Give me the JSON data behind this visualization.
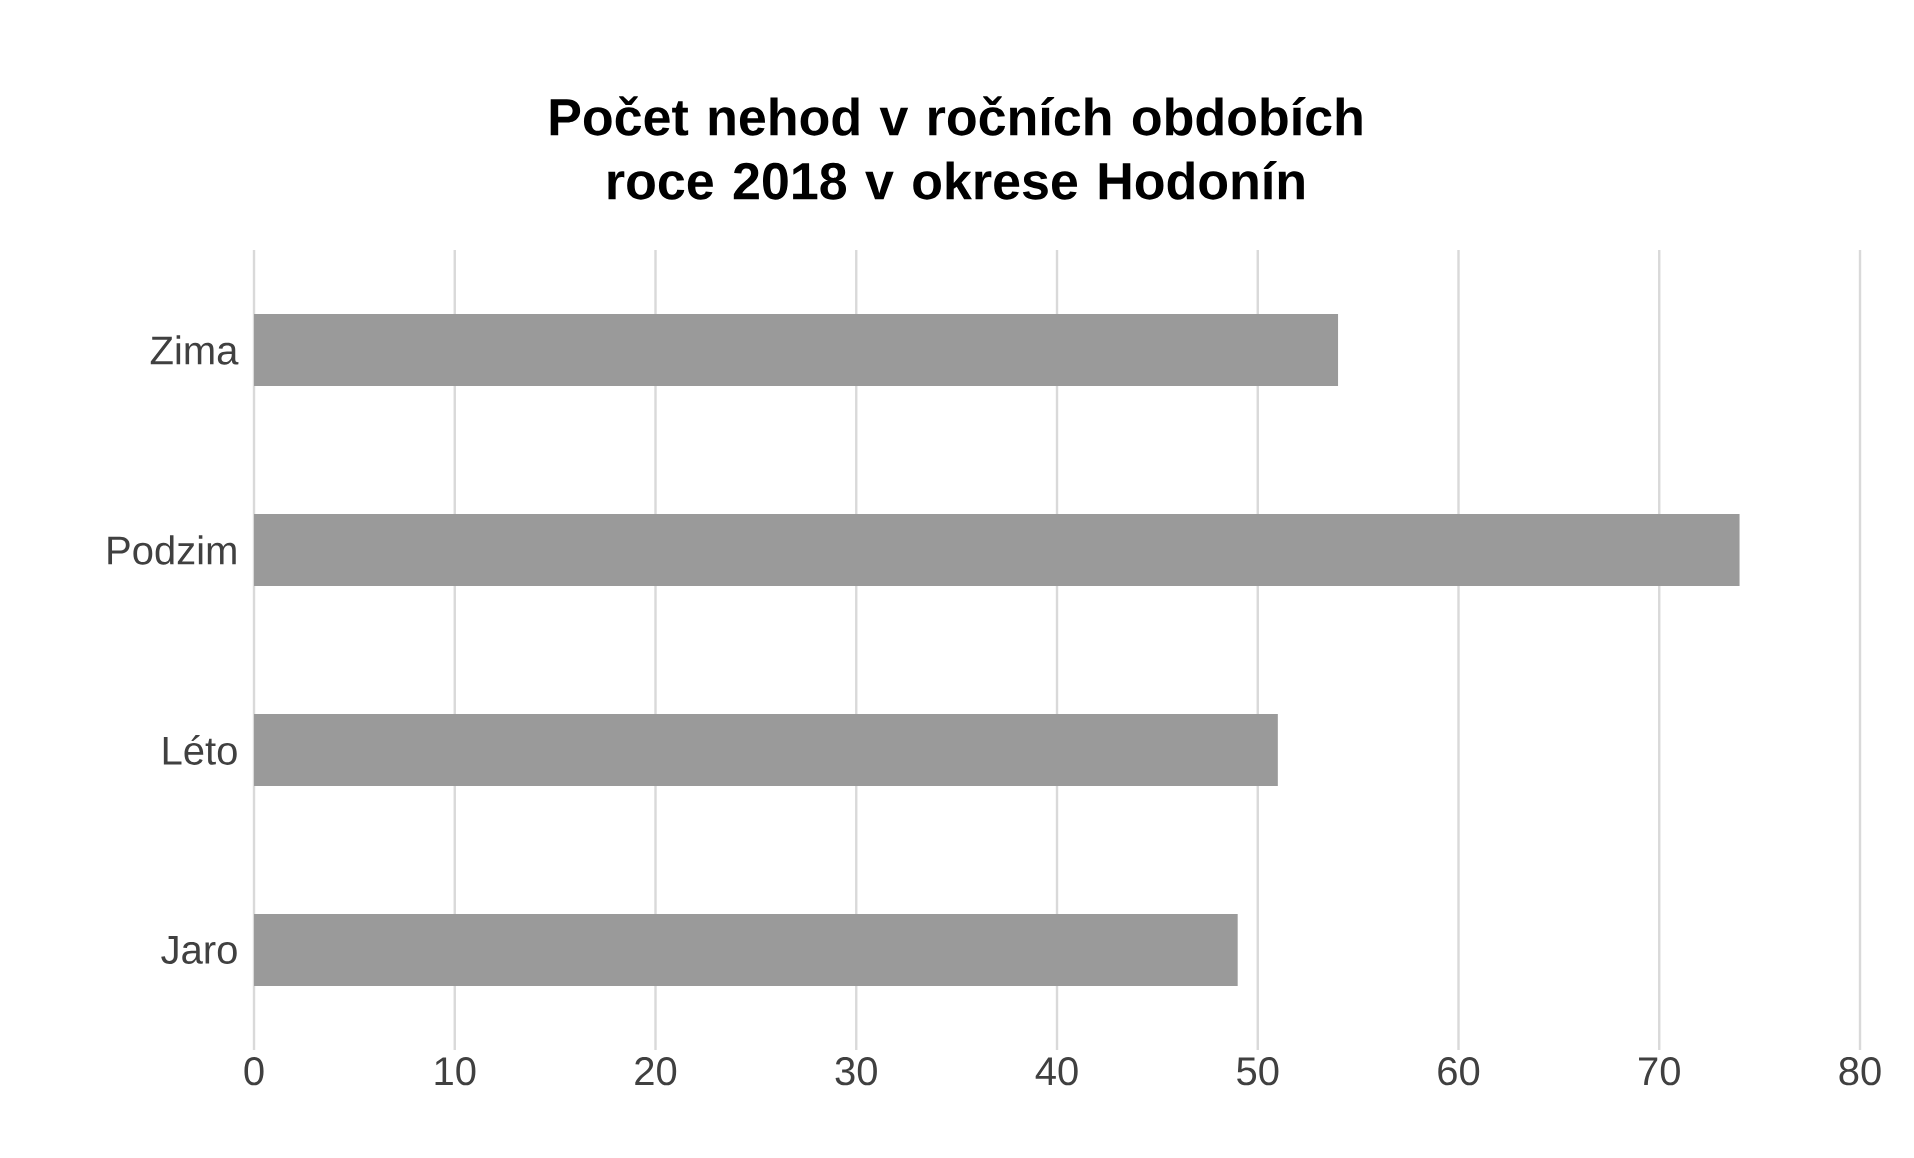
{
  "chart_data": {
    "type": "bar",
    "orientation": "horizontal",
    "title": "Počet nehod v ročních obdobích roce 2018 v okrese Hodonín",
    "categories": [
      "Zima",
      "Podzim",
      "Léto",
      "Jaro"
    ],
    "values": [
      54,
      74,
      51,
      49
    ],
    "color": "#9a9a9a",
    "xlim": [
      0,
      80
    ],
    "xticks": [
      0,
      10,
      20,
      30,
      40,
      50,
      60,
      70,
      80
    ],
    "grid": "x"
  }
}
